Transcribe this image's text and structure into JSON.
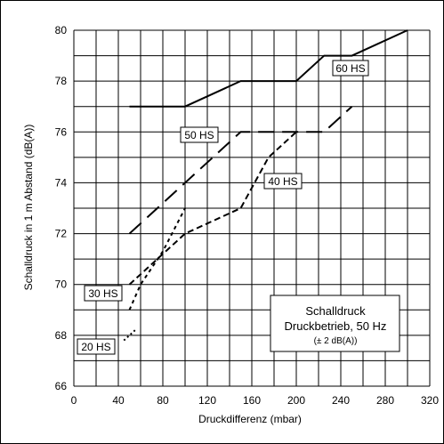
{
  "chart_data": {
    "type": "line",
    "title": "",
    "xlabel": "Druckdifferenz (mbar)",
    "ylabel": "Schalldruck in 1 m Abstand (dB(A))",
    "xlim": [
      0,
      320
    ],
    "ylim": [
      66,
      80
    ],
    "x_ticks": [
      "0",
      "40",
      "80",
      "120",
      "160",
      "200",
      "240",
      "280",
      "320"
    ],
    "y_ticks": [
      "66",
      "68",
      "70",
      "72",
      "74",
      "76",
      "78",
      "80"
    ],
    "grid": true,
    "series": [
      {
        "name": "60 HS",
        "style": "solid",
        "points": [
          [
            50,
            77
          ],
          [
            100,
            77
          ],
          [
            150,
            78
          ],
          [
            200,
            78
          ],
          [
            225,
            79
          ],
          [
            250,
            79
          ],
          [
            300,
            80
          ]
        ]
      },
      {
        "name": "50 HS",
        "style": "long-dash",
        "points": [
          [
            50,
            72
          ],
          [
            100,
            74
          ],
          [
            150,
            76
          ],
          [
            225,
            76
          ],
          [
            250,
            77
          ]
        ]
      },
      {
        "name": "40 HS",
        "style": "dash",
        "points": [
          [
            50,
            70
          ],
          [
            75,
            71
          ],
          [
            100,
            72
          ],
          [
            150,
            73
          ],
          [
            175,
            75
          ],
          [
            200,
            76
          ]
        ]
      },
      {
        "name": "30 HS",
        "style": "short-dash",
        "points": [
          [
            50,
            69
          ],
          [
            60,
            70
          ],
          [
            80,
            71.3
          ],
          [
            100,
            73
          ]
        ]
      },
      {
        "name": "20 HS",
        "style": "dotted",
        "points": [
          [
            45,
            67.8
          ],
          [
            50,
            68
          ],
          [
            55,
            68.2
          ]
        ]
      }
    ],
    "annotations": {
      "box_title_1": "Schalldruck",
      "box_title_2": "Druckbetrieb, 50 Hz",
      "box_note": "(± 2 dB(A))"
    }
  }
}
